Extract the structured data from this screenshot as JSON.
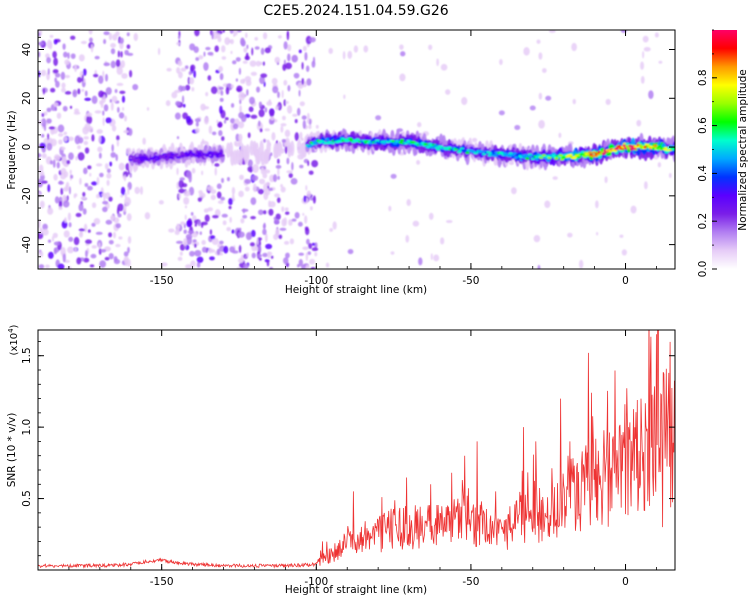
{
  "figure_title": "C2E5.2024.151.04.59.G26",
  "chart_data": [
    {
      "type": "heatmap",
      "xlabel": "Height of straight line (km)",
      "ylabel": "Frequency (Hz)",
      "xlim": [
        -190,
        16
      ],
      "ylim": [
        -50,
        48
      ],
      "x_ticks": [
        -150,
        -100,
        -50,
        0
      ],
      "y_ticks": [
        -40,
        -20,
        0,
        20,
        40
      ],
      "colorbar": {
        "label": "Normalized spectral amplitude",
        "range": [
          0,
          1
        ],
        "ticks": [
          0.0,
          0.2,
          0.4,
          0.6,
          0.8
        ],
        "colors": [
          "#ffffff",
          "#e6ccf7",
          "#b27ff2",
          "#7a1ee8",
          "#5a00ff",
          "#0033ff",
          "#00aaff",
          "#00ffcc",
          "#00ff00",
          "#99ff00",
          "#ffff00",
          "#ff9900",
          "#ff0000",
          "#ff0066"
        ]
      },
      "ridge": {
        "description_points_x": [
          -160,
          -150,
          -140,
          -130,
          -110,
          -100,
          -90,
          -80,
          -70,
          -60,
          -50,
          -40,
          -30,
          -20,
          -10,
          0,
          10,
          16
        ],
        "frequency_hz": [
          -5,
          -4,
          -3,
          -3,
          -2,
          2,
          3,
          2,
          2,
          0,
          -2,
          -3,
          -4,
          -4,
          -3,
          0,
          0,
          -1
        ],
        "peak_amplitude": [
          0.3,
          0.3,
          0.3,
          0.3,
          0.2,
          0.45,
          0.5,
          0.5,
          0.55,
          0.5,
          0.45,
          0.5,
          0.55,
          0.7,
          0.85,
          0.95,
          0.8,
          0.7
        ]
      },
      "noise_regions_km": [
        [
          -190,
          -160
        ],
        [
          -145,
          -100
        ]
      ]
    },
    {
      "type": "line",
      "xlabel": "Height of straight line (km)",
      "ylabel": "SNR (10 * v/v)",
      "y_scale_label": "(x10",
      "y_scale_exponent": "4",
      "y_scale_close": ")",
      "xlim": [
        -190,
        16
      ],
      "ylim": [
        0,
        1.68
      ],
      "x_ticks": [
        -150,
        -100,
        -50,
        0
      ],
      "y_ticks": [
        0.5,
        1.0,
        1.5
      ],
      "y_tick_labels": [
        "0.5",
        "1.0",
        "1.5"
      ],
      "series": [
        {
          "color": "#ee3333",
          "x": [
            -190,
            -170,
            -160,
            -155,
            -150,
            -145,
            -140,
            -130,
            -120,
            -110,
            -100,
            -95,
            -90,
            -85,
            -80,
            -75,
            -70,
            -65,
            -60,
            -55,
            -50,
            -45,
            -40,
            -35,
            -30,
            -25,
            -20,
            -15,
            -10,
            -5,
            0,
            5,
            10,
            16
          ],
          "y": [
            0.03,
            0.03,
            0.04,
            0.06,
            0.07,
            0.05,
            0.04,
            0.03,
            0.03,
            0.03,
            0.04,
            0.12,
            0.18,
            0.22,
            0.26,
            0.28,
            0.3,
            0.3,
            0.32,
            0.32,
            0.34,
            0.3,
            0.22,
            0.36,
            0.4,
            0.46,
            0.5,
            0.56,
            0.6,
            0.66,
            0.74,
            0.84,
            0.95,
            0.9
          ]
        }
      ],
      "spikes": [
        {
          "x": -98,
          "y": 0.2
        },
        {
          "x": -88,
          "y": 0.55
        },
        {
          "x": -78,
          "y": 0.4
        },
        {
          "x": -63,
          "y": 0.6
        },
        {
          "x": -52,
          "y": 0.8
        },
        {
          "x": -48,
          "y": 0.9
        },
        {
          "x": -42,
          "y": 0.55
        },
        {
          "x": -33,
          "y": 1.0
        },
        {
          "x": -29,
          "y": 0.9
        },
        {
          "x": -21,
          "y": 1.2
        },
        {
          "x": -18,
          "y": 0.9
        },
        {
          "x": -12,
          "y": 1.52
        },
        {
          "x": -6,
          "y": 0.95
        },
        {
          "x": 1,
          "y": 1.0
        },
        {
          "x": 5,
          "y": 1.2
        },
        {
          "x": 10,
          "y": 1.65
        },
        {
          "x": 12,
          "y": 0.3
        },
        {
          "x": 14,
          "y": 1.38
        }
      ]
    }
  ]
}
